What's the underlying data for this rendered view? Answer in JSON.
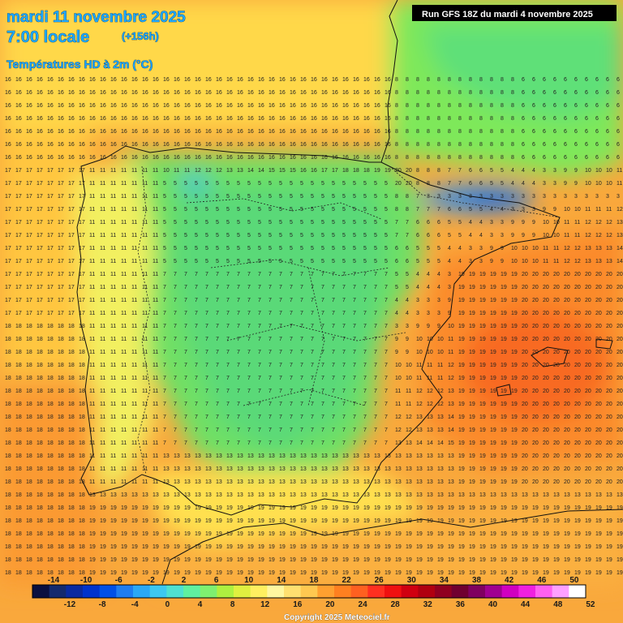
{
  "header": {
    "date_line": "mardi 11 novembre 2025",
    "time_line": "7:00 locale",
    "lead_time": "(+156h)",
    "product": "Températures HD à 2m (°C)"
  },
  "run_info": "Run GFS 18Z du mardi 4 novembre 2025",
  "copyright": "Copyright 2025 Meteociel.fr",
  "scale": {
    "top_labels": [
      "-14",
      "-10",
      "-6",
      "-2",
      "2",
      "6",
      "10",
      "14",
      "18",
      "22",
      "26",
      "30",
      "34",
      "38",
      "42",
      "46",
      "50"
    ],
    "bottom_labels": [
      "-12",
      "-8",
      "-4",
      "0",
      "4",
      "8",
      "12",
      "16",
      "20",
      "24",
      "28",
      "32",
      "36",
      "40",
      "44",
      "48",
      "52"
    ],
    "colors": [
      "#0a1040",
      "#142a6e",
      "#0a2aa0",
      "#0033cc",
      "#0050e6",
      "#1e7df0",
      "#2aa8f5",
      "#3dc8f0",
      "#4fe0d0",
      "#5ff0a0",
      "#7ef070",
      "#aef040",
      "#dff040",
      "#fff060",
      "#fff7a0",
      "#ffe070",
      "#ffc850",
      "#ffa030",
      "#ff8020",
      "#ff6020",
      "#ff3020",
      "#f01010",
      "#d00010",
      "#b00010",
      "#900020",
      "#700030",
      "#800060",
      "#a00090",
      "#d000c0",
      "#f020e0",
      "#ff60f0",
      "#ffa0ff",
      "#ffffff"
    ]
  },
  "map": {
    "region": "Péninsule ibérique",
    "sample_values": [
      "15",
      "16",
      "17",
      "18",
      "19",
      "20",
      "8",
      "7",
      "6",
      "5",
      "4",
      "3",
      "9",
      "10",
      "11",
      "12",
      "13",
      "14"
    ]
  }
}
